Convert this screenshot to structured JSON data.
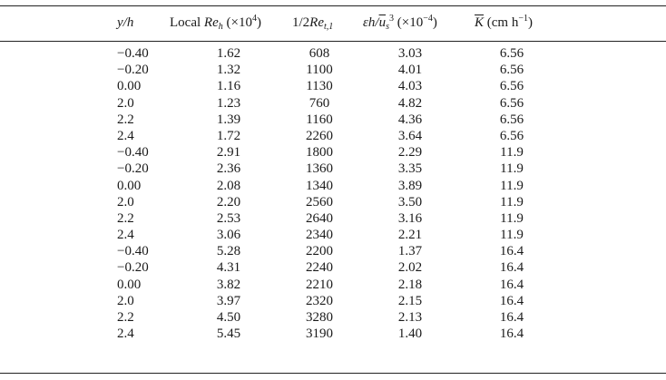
{
  "table": {
    "headers": {
      "col0": "y/h",
      "col1_prefix": "Local ",
      "col1_sym": "Re",
      "col1_sub": "h",
      "col1_suffix_a": " (×10",
      "col1_exp": "4",
      "col1_suffix_b": ")",
      "col2_prefix": "1/2",
      "col2_sym": "Re",
      "col2_sub": "t,1",
      "col3_sym": "εh/",
      "col3_over": "u",
      "col3_sub": "s",
      "col3_exp": "3",
      "col3_suffix_a": " (×10",
      "col3_exp2": "−4",
      "col3_suffix_b": ")",
      "col4_over": "K",
      "col4_suffix_a": " (cm h",
      "col4_exp": "−1",
      "col4_suffix_b": ")"
    },
    "rows": [
      [
        "−0.40",
        "1.62",
        "608",
        "3.03",
        "6.56"
      ],
      [
        "−0.20",
        "1.32",
        "1100",
        "4.01",
        "6.56"
      ],
      [
        "0.00",
        "1.16",
        "1130",
        "4.03",
        "6.56"
      ],
      [
        "2.0",
        "1.23",
        "760",
        "4.82",
        "6.56"
      ],
      [
        "2.2",
        "1.39",
        "1160",
        "4.36",
        "6.56"
      ],
      [
        "2.4",
        "1.72",
        "2260",
        "3.64",
        "6.56"
      ],
      [
        "−0.40",
        "2.91",
        "1800",
        "2.29",
        "11.9"
      ],
      [
        "−0.20",
        "2.36",
        "1360",
        "3.35",
        "11.9"
      ],
      [
        "0.00",
        "2.08",
        "1340",
        "3.89",
        "11.9"
      ],
      [
        "2.0",
        "2.20",
        "2560",
        "3.50",
        "11.9"
      ],
      [
        "2.2",
        "2.53",
        "2640",
        "3.16",
        "11.9"
      ],
      [
        "2.4",
        "3.06",
        "2340",
        "2.21",
        "11.9"
      ],
      [
        "−0.40",
        "5.28",
        "2200",
        "1.37",
        "16.4"
      ],
      [
        "−0.20",
        "4.31",
        "2240",
        "2.02",
        "16.4"
      ],
      [
        "0.00",
        "3.82",
        "2210",
        "2.18",
        "16.4"
      ],
      [
        "2.0",
        "3.97",
        "2320",
        "2.15",
        "16.4"
      ],
      [
        "2.2",
        "4.50",
        "3280",
        "2.13",
        "16.4"
      ],
      [
        "2.4",
        "5.45",
        "3190",
        "1.40",
        "16.4"
      ]
    ]
  }
}
